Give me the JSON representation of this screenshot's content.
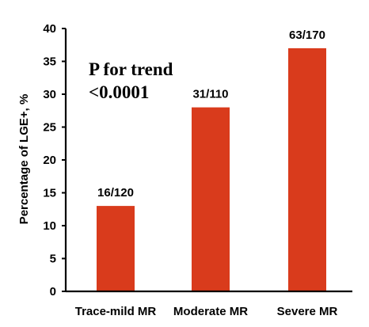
{
  "chart_data": {
    "type": "bar",
    "categories": [
      "Trace-mild MR",
      "Moderate MR",
      "Severe MR"
    ],
    "values": [
      13,
      28,
      37
    ],
    "data_labels": [
      "16/120",
      "31/110",
      "63/170"
    ],
    "title": "",
    "xlabel": "",
    "ylabel": "Percentage of LGE+, %",
    "ylim": [
      0,
      40
    ],
    "yticks": [
      0,
      5,
      10,
      15,
      20,
      25,
      30,
      35,
      40
    ],
    "grid": false,
    "bar_color": "#d93b1c",
    "annotation": {
      "line1": "P for trend",
      "line2": "<0.0001"
    }
  }
}
